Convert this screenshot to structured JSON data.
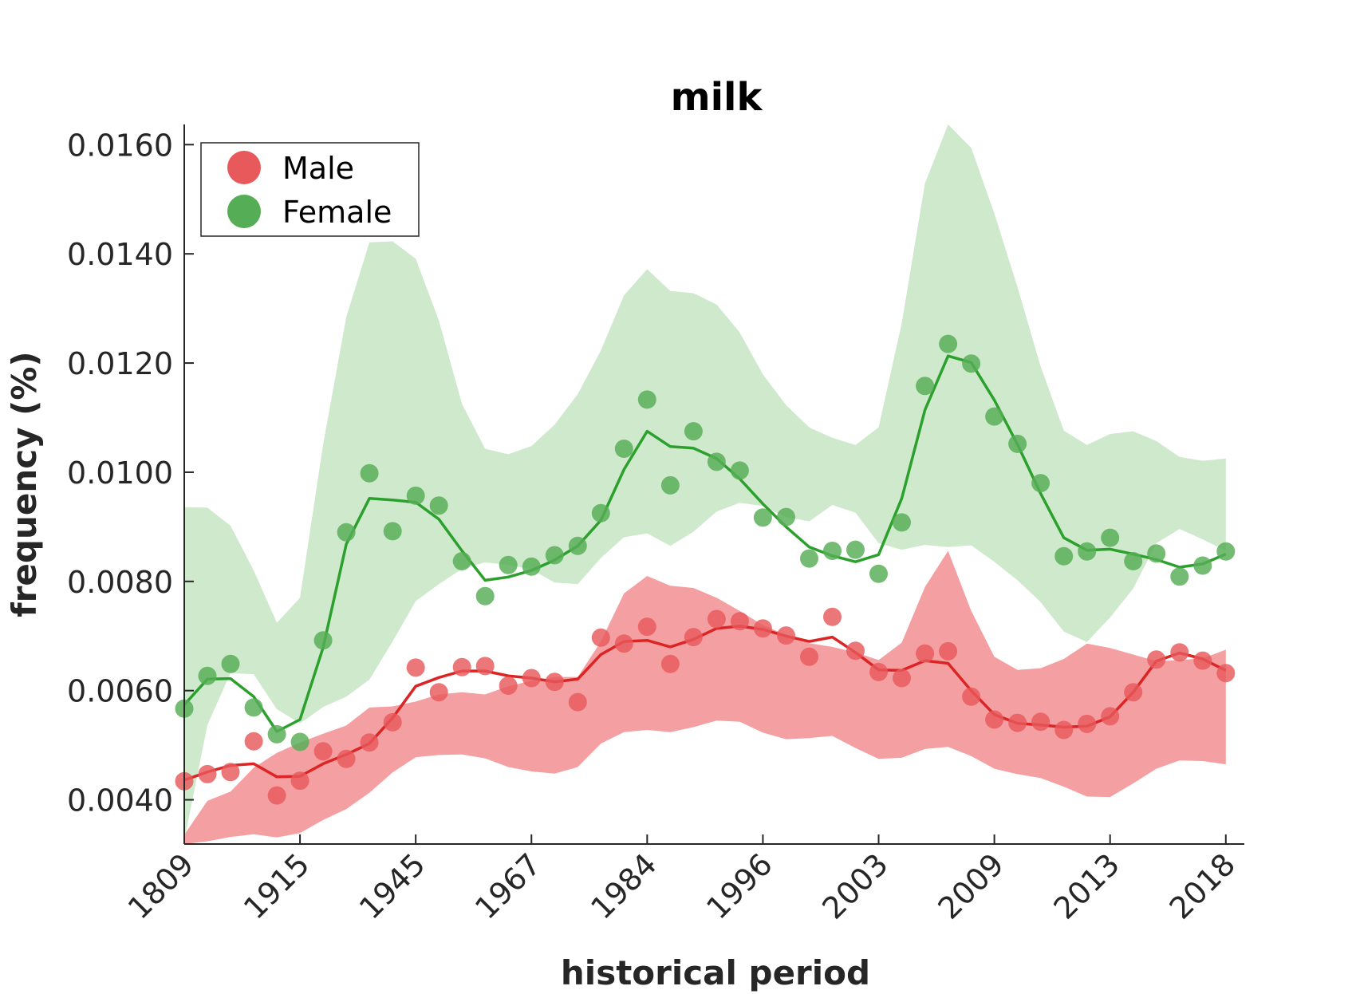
{
  "chart_data": {
    "type": "scatter",
    "title": "milk",
    "xlabel": "historical period",
    "ylabel": "frequency (%)",
    "x_tick_labels": [
      "1809",
      "1915",
      "1945",
      "1967",
      "1984",
      "1996",
      "2003",
      "2009",
      "2013",
      "2018"
    ],
    "y_ticks": [
      0.004,
      0.006,
      0.008,
      0.01,
      0.012,
      0.014,
      0.016
    ],
    "y_tick_labels": [
      "0.0040",
      "0.0060",
      "0.0080",
      "0.0100",
      "0.0120",
      "0.0140",
      "0.0160"
    ],
    "xlim": [
      0,
      45.8
    ],
    "ylim": [
      0.00319,
      0.01637
    ],
    "grid": false,
    "legend_position": "top-left",
    "x": [
      0,
      1,
      2,
      3,
      4,
      5,
      6,
      7,
      8,
      9,
      10,
      11,
      12,
      13,
      14,
      15,
      16,
      17,
      18,
      19,
      20,
      21,
      22,
      23,
      24,
      25,
      26,
      27,
      28,
      29,
      30,
      31,
      32,
      33,
      34,
      35,
      36,
      37,
      38,
      39,
      40,
      41,
      42,
      43,
      44,
      45
    ],
    "series": [
      {
        "name": "Male",
        "color": "#e8595b",
        "line_color": "#dd2424",
        "band_color": "#f4a0a2",
        "points": [
          0.00434,
          0.00447,
          0.00451,
          0.00507,
          0.00408,
          0.00435,
          0.00489,
          0.00475,
          0.00505,
          0.00542,
          0.00642,
          0.00597,
          0.00643,
          0.00645,
          0.00609,
          0.00623,
          0.00616,
          0.00579,
          0.00697,
          0.00686,
          0.00717,
          0.00649,
          0.00698,
          0.00731,
          0.00727,
          0.00714,
          0.00701,
          0.00662,
          0.00735,
          0.00673,
          0.00634,
          0.00623,
          0.00668,
          0.00672,
          0.00589,
          0.00547,
          0.00541,
          0.00543,
          0.00528,
          0.00539,
          0.00553,
          0.00597,
          0.00657,
          0.0067,
          0.00655,
          0.00632
        ],
        "fit": [
          0.00436,
          0.00451,
          0.00463,
          0.00466,
          0.00442,
          0.00443,
          0.00466,
          0.00483,
          0.00503,
          0.0055,
          0.00608,
          0.00624,
          0.00636,
          0.00636,
          0.00627,
          0.00623,
          0.00616,
          0.00621,
          0.00666,
          0.0069,
          0.00692,
          0.0068,
          0.00694,
          0.00714,
          0.00718,
          0.00712,
          0.007,
          0.0069,
          0.00698,
          0.0067,
          0.00638,
          0.00637,
          0.00655,
          0.0065,
          0.006,
          0.00556,
          0.0054,
          0.00537,
          0.00533,
          0.00535,
          0.00552,
          0.00597,
          0.00654,
          0.00669,
          0.00658,
          0.00637
        ],
        "band_upper": [
          0.00336,
          0.00398,
          0.00415,
          0.00459,
          0.00486,
          0.00505,
          0.00521,
          0.00536,
          0.00569,
          0.00571,
          0.0058,
          0.00593,
          0.00597,
          0.00593,
          0.00608,
          0.00618,
          0.00625,
          0.00625,
          0.0069,
          0.00778,
          0.0081,
          0.00792,
          0.00788,
          0.0077,
          0.00746,
          0.0072,
          0.00702,
          0.00687,
          0.0068,
          0.0067,
          0.00656,
          0.00688,
          0.0079,
          0.00856,
          0.00746,
          0.00662,
          0.00638,
          0.00641,
          0.00658,
          0.00686,
          0.00678,
          0.00666,
          0.00654,
          0.00656,
          0.00659,
          0.00675
        ],
        "band_lower": [
          0.00319,
          0.00324,
          0.00332,
          0.00337,
          0.00331,
          0.00339,
          0.00363,
          0.00383,
          0.00413,
          0.0045,
          0.00478,
          0.00482,
          0.00483,
          0.00476,
          0.0046,
          0.00452,
          0.00448,
          0.0046,
          0.00503,
          0.00524,
          0.00528,
          0.00524,
          0.00533,
          0.00545,
          0.00543,
          0.00523,
          0.00511,
          0.00513,
          0.00517,
          0.00495,
          0.00475,
          0.00477,
          0.00493,
          0.00497,
          0.0048,
          0.00457,
          0.00447,
          0.0044,
          0.00424,
          0.00406,
          0.00405,
          0.0043,
          0.00457,
          0.00472,
          0.00471,
          0.00465
        ]
      },
      {
        "name": "Female",
        "color": "#55ad55",
        "line_color": "#2ca02c",
        "band_color": "#aedbaa",
        "points": [
          0.00567,
          0.00627,
          0.00649,
          0.00569,
          0.0052,
          0.00506,
          0.00692,
          0.0089,
          0.00998,
          0.00892,
          0.00957,
          0.00939,
          0.00837,
          0.00773,
          0.0083,
          0.00827,
          0.00848,
          0.00865,
          0.00925,
          0.01043,
          0.01133,
          0.00976,
          0.01075,
          0.01019,
          0.01003,
          0.00917,
          0.00918,
          0.00842,
          0.00856,
          0.00858,
          0.00814,
          0.00908,
          0.01158,
          0.01235,
          0.01199,
          0.01102,
          0.01052,
          0.0098,
          0.00846,
          0.00855,
          0.0088,
          0.00837,
          0.00851,
          0.00809,
          0.00829,
          0.00855
        ],
        "fit": [
          0.00574,
          0.00621,
          0.00622,
          0.00589,
          0.00525,
          0.00547,
          0.00679,
          0.00868,
          0.00952,
          0.00949,
          0.00945,
          0.00914,
          0.00856,
          0.00802,
          0.00808,
          0.0082,
          0.00839,
          0.00865,
          0.00912,
          0.01005,
          0.01075,
          0.01047,
          0.01044,
          0.01025,
          0.00988,
          0.00942,
          0.009,
          0.00863,
          0.00847,
          0.00836,
          0.00849,
          0.00952,
          0.01114,
          0.01213,
          0.01201,
          0.01132,
          0.01051,
          0.00961,
          0.0088,
          0.00857,
          0.00859,
          0.0085,
          0.0084,
          0.00826,
          0.00832,
          0.0085
        ],
        "band_upper": [
          0.00936,
          0.00935,
          0.00902,
          0.0082,
          0.00724,
          0.0077,
          0.01051,
          0.01284,
          0.01421,
          0.01423,
          0.01391,
          0.01278,
          0.01125,
          0.01043,
          0.01033,
          0.01048,
          0.01087,
          0.01143,
          0.01223,
          0.01324,
          0.01372,
          0.01332,
          0.01328,
          0.01307,
          0.01256,
          0.01179,
          0.01123,
          0.01082,
          0.01063,
          0.0105,
          0.01082,
          0.01273,
          0.01529,
          0.01637,
          0.01594,
          0.01474,
          0.01339,
          0.01194,
          0.01076,
          0.0105,
          0.0107,
          0.01075,
          0.01057,
          0.01028,
          0.01021,
          0.01025
        ],
        "band_lower": [
          0.00325,
          0.00537,
          0.00632,
          0.0063,
          0.00566,
          0.0054,
          0.0057,
          0.00589,
          0.0062,
          0.0069,
          0.00764,
          0.00795,
          0.00823,
          0.00835,
          0.0083,
          0.00822,
          0.00798,
          0.00795,
          0.00843,
          0.00881,
          0.00888,
          0.00865,
          0.00891,
          0.00928,
          0.00944,
          0.00938,
          0.00918,
          0.0091,
          0.0094,
          0.00926,
          0.0087,
          0.00858,
          0.00867,
          0.00863,
          0.00866,
          0.00836,
          0.00802,
          0.00762,
          0.00708,
          0.00689,
          0.00734,
          0.00787,
          0.0087,
          0.00896,
          0.00877,
          0.00856
        ]
      }
    ]
  }
}
